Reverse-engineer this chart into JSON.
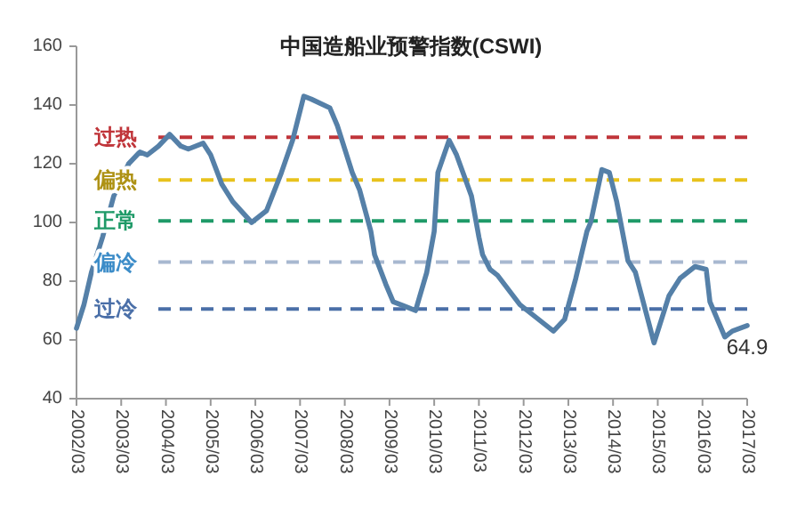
{
  "chart_data": {
    "type": "line",
    "title": "中国造船业预警指数(CSWI)",
    "x": [
      "2002-03",
      "2002-05",
      "2002-07",
      "2002-10",
      "2003-01",
      "2003-05",
      "2003-08",
      "2003-10",
      "2004-01",
      "2004-04",
      "2004-07",
      "2004-09",
      "2005-01",
      "2005-03",
      "2005-06",
      "2005-09",
      "2006-02",
      "2006-06",
      "2006-10",
      "2007-01",
      "2007-04",
      "2007-06",
      "2007-11",
      "2008-01",
      "2008-05",
      "2008-07",
      "2008-10",
      "2008-11",
      "2009-02",
      "2009-04",
      "2009-08",
      "2009-10",
      "2010-01",
      "2010-03",
      "2010-04",
      "2010-07",
      "2010-09",
      "2011-01",
      "2011-03",
      "2011-04",
      "2011-06",
      "2011-08",
      "2012-02",
      "2012-11",
      "2013-02",
      "2013-05",
      "2013-08",
      "2013-09",
      "2013-12",
      "2014-02",
      "2014-04",
      "2014-07",
      "2014-09",
      "2015-02",
      "2015-06",
      "2015-09",
      "2016-01",
      "2016-04",
      "2016-05",
      "2016-09",
      "2016-11",
      "2017-03"
    ],
    "series": [
      {
        "color": "#5580a8",
        "values": [
          64,
          72,
          83,
          95,
          109,
          120,
          124,
          123,
          126,
          130,
          126,
          125,
          127,
          123,
          113,
          107,
          100,
          104,
          117,
          128,
          143,
          142,
          139,
          133,
          117,
          111,
          97,
          89,
          79,
          73,
          71,
          70,
          83,
          97,
          117,
          128,
          123,
          109,
          95,
          89,
          84,
          82,
          72,
          63,
          67,
          81,
          97,
          100,
          118,
          117,
          107,
          87,
          83,
          59,
          75,
          81,
          85,
          84,
          73,
          61,
          63,
          64.9
        ],
        "value_labels": [
          null,
          null,
          null,
          null,
          null,
          null,
          null,
          null,
          null,
          null,
          null,
          null,
          null,
          null,
          null,
          null,
          null,
          null,
          null,
          null,
          null,
          null,
          null,
          null,
          null,
          null,
          null,
          null,
          null,
          null,
          null,
          null,
          null,
          null,
          null,
          null,
          null,
          null,
          null,
          null,
          null,
          null,
          null,
          null,
          null,
          null,
          null,
          null,
          null,
          null,
          null,
          null,
          null,
          null,
          null,
          null,
          null,
          null,
          null,
          null,
          null,
          "64.9"
        ]
      }
    ],
    "xlim": [
      "2002-03",
      "2017-03"
    ],
    "xticks": [
      {
        "value": "2002-03",
        "label": "2002/03"
      },
      {
        "value": "2003-03",
        "label": "2003/03"
      },
      {
        "value": "2004-03",
        "label": "2004/03"
      },
      {
        "value": "2005-03",
        "label": "2005/03"
      },
      {
        "value": "2006-03",
        "label": "2006/03"
      },
      {
        "value": "2007-03",
        "label": "2007/03"
      },
      {
        "value": "2008-03",
        "label": "2008/03"
      },
      {
        "value": "2009-03",
        "label": "2009/03"
      },
      {
        "value": "2010-03",
        "label": "2010/03"
      },
      {
        "value": "2011-03",
        "label": "2011/03"
      },
      {
        "value": "2012-03",
        "label": "2012/03"
      },
      {
        "value": "2013-03",
        "label": "2013/03"
      },
      {
        "value": "2014-03",
        "label": "2014/03"
      },
      {
        "value": "2015-03",
        "label": "2015/03"
      },
      {
        "value": "2016-03",
        "label": "2016/03"
      },
      {
        "value": "2017-03",
        "label": "2017/03"
      }
    ],
    "ylim": [
      40,
      160
    ],
    "yticks": [
      40,
      60,
      80,
      100,
      120,
      140,
      160
    ],
    "ref_lines": [
      {
        "axis": "y",
        "value": 129,
        "label": "过热",
        "color": "#c0353a",
        "line_style": "dashed"
      },
      {
        "axis": "y",
        "value": 114.5,
        "label": "偏热",
        "color": "#e8c21c",
        "line_style": "dashed"
      },
      {
        "axis": "y",
        "value": 100.5,
        "label": "正常",
        "color": "#1f9a68",
        "line_style": "dashed"
      },
      {
        "axis": "y",
        "value": 86.5,
        "label": "偏冷",
        "color": "#a8b8d0",
        "line_style": "dashed"
      },
      {
        "axis": "y",
        "value": 70.5,
        "label": "过冷",
        "color": "#4a6fa8",
        "line_style": "dashed"
      }
    ],
    "grid": false,
    "marker": "none",
    "line_style": "solid"
  }
}
